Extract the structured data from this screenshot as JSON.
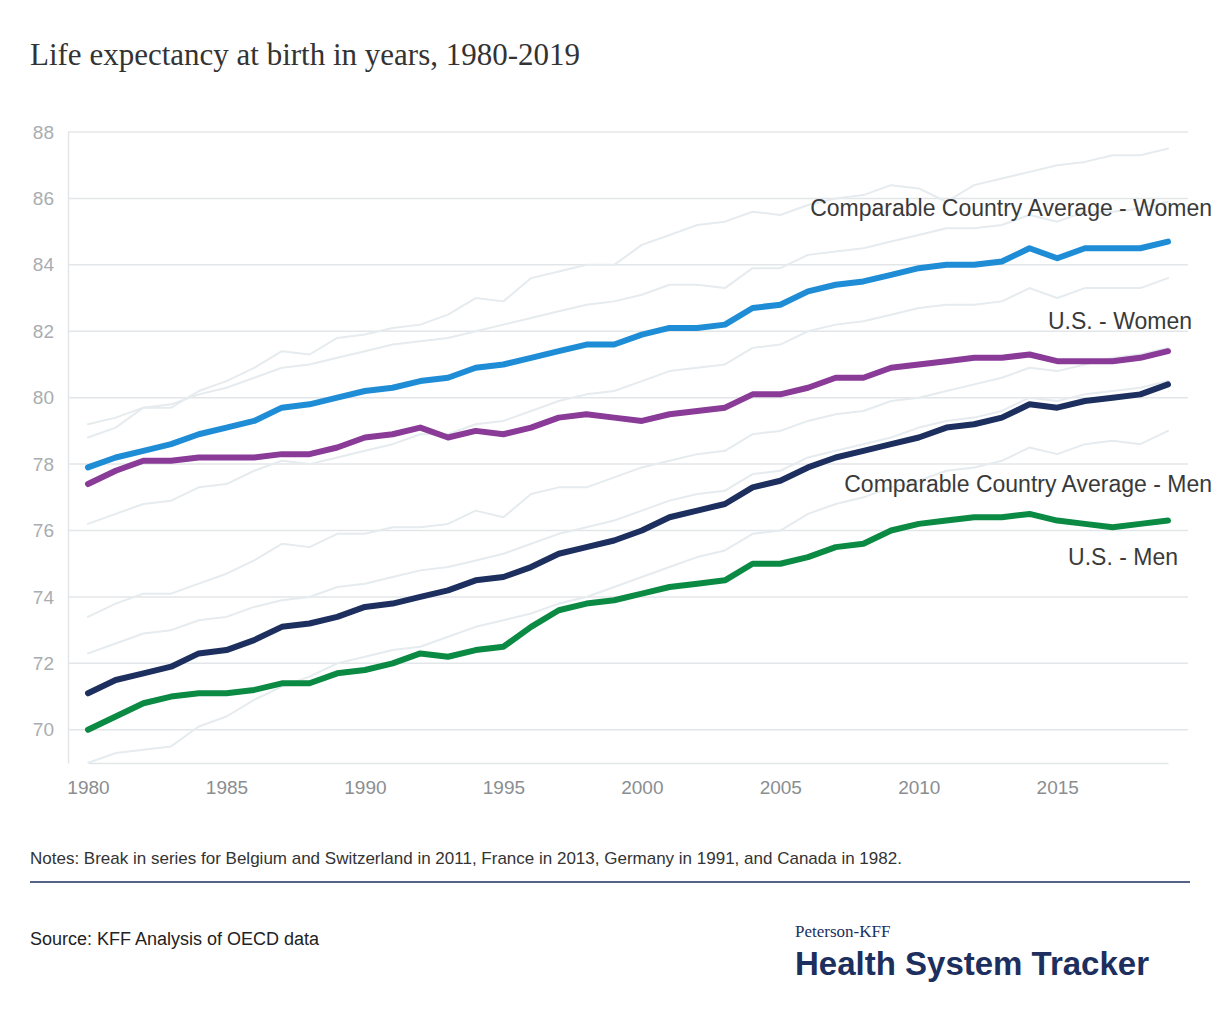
{
  "chart_data": {
    "type": "line",
    "title": "Life expectancy at birth in years, 1980-2019",
    "x": [
      1980,
      1981,
      1982,
      1983,
      1984,
      1985,
      1986,
      1987,
      1988,
      1989,
      1990,
      1991,
      1992,
      1993,
      1994,
      1995,
      1996,
      1997,
      1998,
      1999,
      2000,
      2001,
      2002,
      2003,
      2004,
      2005,
      2006,
      2007,
      2008,
      2009,
      2010,
      2011,
      2012,
      2013,
      2014,
      2015,
      2016,
      2017,
      2018,
      2019
    ],
    "xlim": [
      1980,
      2019
    ],
    "xticks": [
      1980,
      1985,
      1990,
      1995,
      2000,
      2005,
      2010,
      2015
    ],
    "ylim": [
      69,
      88
    ],
    "yticks": [
      70,
      72,
      74,
      76,
      78,
      80,
      82,
      84,
      86,
      88
    ],
    "grid": true,
    "series": [
      {
        "color": "#e5ebee",
        "values": [
          78.8,
          79.1,
          79.7,
          79.7,
          80.2,
          80.5,
          80.9,
          81.4,
          81.3,
          81.8,
          81.9,
          82.1,
          82.2,
          82.5,
          83.0,
          82.9,
          83.6,
          83.8,
          84.0,
          84.0,
          84.6,
          84.9,
          85.2,
          85.3,
          85.6,
          85.5,
          85.8,
          86.0,
          86.1,
          86.4,
          86.3,
          85.9,
          86.4,
          86.6,
          86.8,
          87.0,
          87.1,
          87.3,
          87.3,
          87.5
        ]
      },
      {
        "color": "#e5ebee",
        "values": [
          76.2,
          76.5,
          76.8,
          76.9,
          77.3,
          77.4,
          77.8,
          78.1,
          78.0,
          78.2,
          78.4,
          78.6,
          78.9,
          78.9,
          79.2,
          79.3,
          79.6,
          79.9,
          80.1,
          80.2,
          80.5,
          80.8,
          80.9,
          81.0,
          81.5,
          81.6,
          82.0,
          82.2,
          82.3,
          82.5,
          82.7,
          82.8,
          82.8,
          82.9,
          83.3,
          83.0,
          83.3,
          83.3,
          83.3,
          83.6
        ]
      },
      {
        "color": "#e5ebee",
        "values": [
          79.2,
          79.4,
          79.7,
          79.8,
          80.1,
          80.3,
          80.6,
          80.9,
          81.0,
          81.2,
          81.4,
          81.6,
          81.7,
          81.8,
          82.0,
          82.2,
          82.4,
          82.6,
          82.8,
          82.9,
          83.1,
          83.4,
          83.4,
          83.3,
          83.9,
          83.9,
          84.3,
          84.4,
          84.5,
          84.7,
          84.9,
          85.1,
          85.1,
          85.2,
          85.5,
          85.3,
          85.6,
          85.6,
          85.7,
          85.9
        ]
      },
      {
        "color": "#e5ebee",
        "values": [
          73.4,
          73.8,
          74.1,
          74.1,
          74.4,
          74.7,
          75.1,
          75.6,
          75.5,
          75.9,
          75.9,
          76.1,
          76.1,
          76.2,
          76.6,
          76.4,
          77.1,
          77.3,
          77.3,
          77.6,
          77.9,
          78.1,
          78.3,
          78.4,
          78.9,
          79.0,
          79.3,
          79.5,
          79.6,
          79.9,
          80.0,
          80.2,
          80.4,
          80.6,
          80.9,
          80.8,
          81.0,
          81.2,
          81.3,
          81.5
        ]
      },
      {
        "color": "#e5ebee",
        "values": [
          69.0,
          69.3,
          69.4,
          69.5,
          70.1,
          70.4,
          70.9,
          71.3,
          71.6,
          72.0,
          72.2,
          72.4,
          72.5,
          72.8,
          73.1,
          73.3,
          73.5,
          73.8,
          74.0,
          74.3,
          74.6,
          74.9,
          75.2,
          75.4,
          75.9,
          76.0,
          76.5,
          76.8,
          77.0,
          77.3,
          77.5,
          77.8,
          77.9,
          78.1,
          78.5,
          78.3,
          78.6,
          78.7,
          78.6,
          79.0
        ]
      },
      {
        "color": "#e5ebee",
        "values": [
          72.3,
          72.6,
          72.9,
          73.0,
          73.3,
          73.4,
          73.7,
          73.9,
          74.0,
          74.3,
          74.4,
          74.6,
          74.8,
          74.9,
          75.1,
          75.3,
          75.6,
          75.9,
          76.1,
          76.3,
          76.6,
          76.9,
          77.1,
          77.2,
          77.7,
          77.8,
          78.2,
          78.4,
          78.6,
          78.8,
          79.1,
          79.3,
          79.4,
          79.6,
          80.0,
          79.9,
          80.1,
          80.2,
          80.3,
          80.5
        ]
      },
      {
        "name": "Comparable Country Average - Women",
        "color": "#1f8dd6",
        "values": [
          77.9,
          78.2,
          78.4,
          78.6,
          78.9,
          79.1,
          79.3,
          79.7,
          79.8,
          80.0,
          80.2,
          80.3,
          80.5,
          80.6,
          80.9,
          81.0,
          81.2,
          81.4,
          81.6,
          81.6,
          81.9,
          82.1,
          82.1,
          82.2,
          82.7,
          82.8,
          83.2,
          83.4,
          83.5,
          83.7,
          83.9,
          84.0,
          84.0,
          84.1,
          84.5,
          84.2,
          84.5,
          84.5,
          84.5,
          84.7
        ]
      },
      {
        "name": "U.S. - Women",
        "color": "#893b97",
        "values": [
          77.4,
          77.8,
          78.1,
          78.1,
          78.2,
          78.2,
          78.2,
          78.3,
          78.3,
          78.5,
          78.8,
          78.9,
          79.1,
          78.8,
          79.0,
          78.9,
          79.1,
          79.4,
          79.5,
          79.4,
          79.3,
          79.5,
          79.6,
          79.7,
          80.1,
          80.1,
          80.3,
          80.6,
          80.6,
          80.9,
          81.0,
          81.1,
          81.2,
          81.2,
          81.3,
          81.1,
          81.1,
          81.1,
          81.2,
          81.4
        ]
      },
      {
        "name": "Comparable Country Average - Men",
        "color": "#1c2f5e",
        "values": [
          71.1,
          71.5,
          71.7,
          71.9,
          72.3,
          72.4,
          72.7,
          73.1,
          73.2,
          73.4,
          73.7,
          73.8,
          74.0,
          74.2,
          74.5,
          74.6,
          74.9,
          75.3,
          75.5,
          75.7,
          76.0,
          76.4,
          76.6,
          76.8,
          77.3,
          77.5,
          77.9,
          78.2,
          78.4,
          78.6,
          78.8,
          79.1,
          79.2,
          79.4,
          79.8,
          79.7,
          79.9,
          80.0,
          80.1,
          80.4
        ]
      },
      {
        "name": "U.S. - Men",
        "color": "#0b8a44",
        "values": [
          70.0,
          70.4,
          70.8,
          71.0,
          71.1,
          71.1,
          71.2,
          71.4,
          71.4,
          71.7,
          71.8,
          72.0,
          72.3,
          72.2,
          72.4,
          72.5,
          73.1,
          73.6,
          73.8,
          73.9,
          74.1,
          74.3,
          74.4,
          74.5,
          75.0,
          75.0,
          75.2,
          75.5,
          75.6,
          76.0,
          76.2,
          76.3,
          76.4,
          76.4,
          76.5,
          76.3,
          76.2,
          76.1,
          76.2,
          76.3
        ]
      }
    ],
    "notes": "Notes: Break in series for Belgium and Switzerland in 2011, France in 2013, Germany in 1991, and Canada in 1982.",
    "source": "Source: KFF Analysis of OECD data",
    "branding": {
      "top": "Peterson-KFF",
      "main": "Health System Tracker"
    }
  }
}
